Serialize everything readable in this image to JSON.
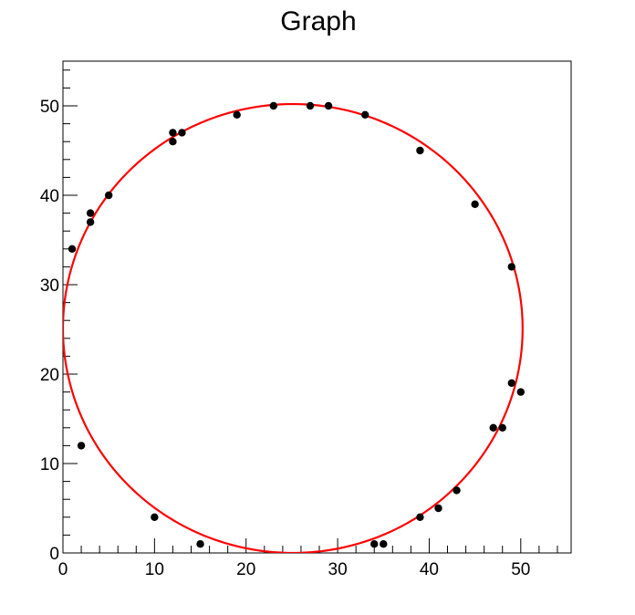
{
  "chart_data": {
    "type": "scatter",
    "title": "Graph",
    "xlabel": "",
    "ylabel": "",
    "xlim": [
      0,
      55.5
    ],
    "ylim": [
      0,
      55
    ],
    "x_ticks": [
      0,
      10,
      20,
      30,
      40,
      50
    ],
    "y_ticks": [
      0,
      10,
      20,
      30,
      40,
      50
    ],
    "grid": false,
    "series": [
      {
        "kind": "points",
        "color": "#000000",
        "points": [
          [
            1,
            34
          ],
          [
            2,
            12
          ],
          [
            3,
            38
          ],
          [
            3,
            37
          ],
          [
            5,
            40
          ],
          [
            10,
            4
          ],
          [
            12,
            47
          ],
          [
            12,
            46
          ],
          [
            13,
            47
          ],
          [
            15,
            1
          ],
          [
            19,
            49
          ],
          [
            23,
            50
          ],
          [
            27,
            50
          ],
          [
            29,
            50
          ],
          [
            33,
            49
          ],
          [
            34,
            1
          ],
          [
            35,
            1
          ],
          [
            39,
            45
          ],
          [
            39,
            4
          ],
          [
            41,
            5
          ],
          [
            43,
            7
          ],
          [
            45,
            39
          ],
          [
            47,
            14
          ],
          [
            48,
            14
          ],
          [
            49,
            32
          ],
          [
            49,
            19
          ],
          [
            50,
            18
          ]
        ]
      },
      {
        "kind": "fit-circle",
        "color": "#ff0000",
        "center": [
          25.1,
          25.1
        ],
        "radius": 25.1
      }
    ]
  }
}
